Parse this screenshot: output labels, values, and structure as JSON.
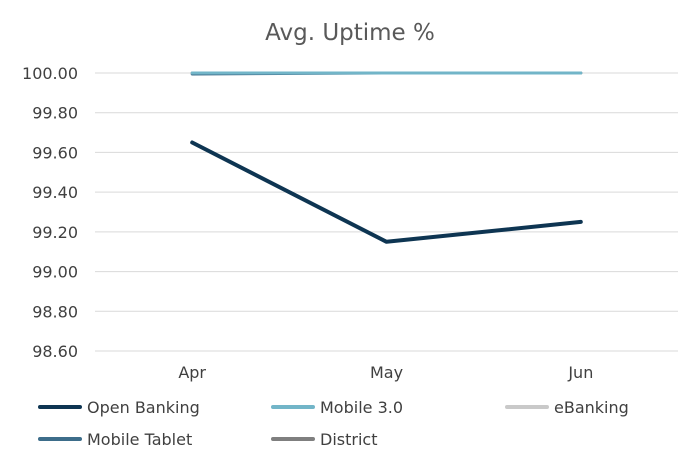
{
  "chart_data": {
    "type": "line",
    "title": "Avg. Uptime %",
    "xlabel": "",
    "ylabel": "",
    "categories": [
      "Apr",
      "May",
      "Jun"
    ],
    "ylim": [
      98.6,
      100.0
    ],
    "yticks": [
      "100.00",
      "99.80",
      "99.60",
      "99.40",
      "99.20",
      "99.00",
      "98.80",
      "98.60"
    ],
    "ytick_values": [
      100.0,
      99.8,
      99.6,
      99.4,
      99.2,
      99.0,
      98.8,
      98.6
    ],
    "grid": true,
    "legend_position": "bottom",
    "series": [
      {
        "name": "Open Banking",
        "color": "#0e3552",
        "values": [
          99.65,
          99.15,
          99.25
        ]
      },
      {
        "name": "Mobile 3.0",
        "color": "#72b5c8",
        "values": [
          100.0,
          100.0,
          100.0
        ]
      },
      {
        "name": "eBanking",
        "color": "#c9c9c9",
        "values": [
          100.0,
          100.0,
          100.0
        ]
      },
      {
        "name": "Mobile Tablet",
        "color": "#3d6d8a",
        "values": [
          99.995,
          100.0,
          100.0
        ]
      },
      {
        "name": "District",
        "color": "#7f7f7f",
        "values": [
          100.0,
          100.0,
          100.0
        ]
      }
    ]
  }
}
